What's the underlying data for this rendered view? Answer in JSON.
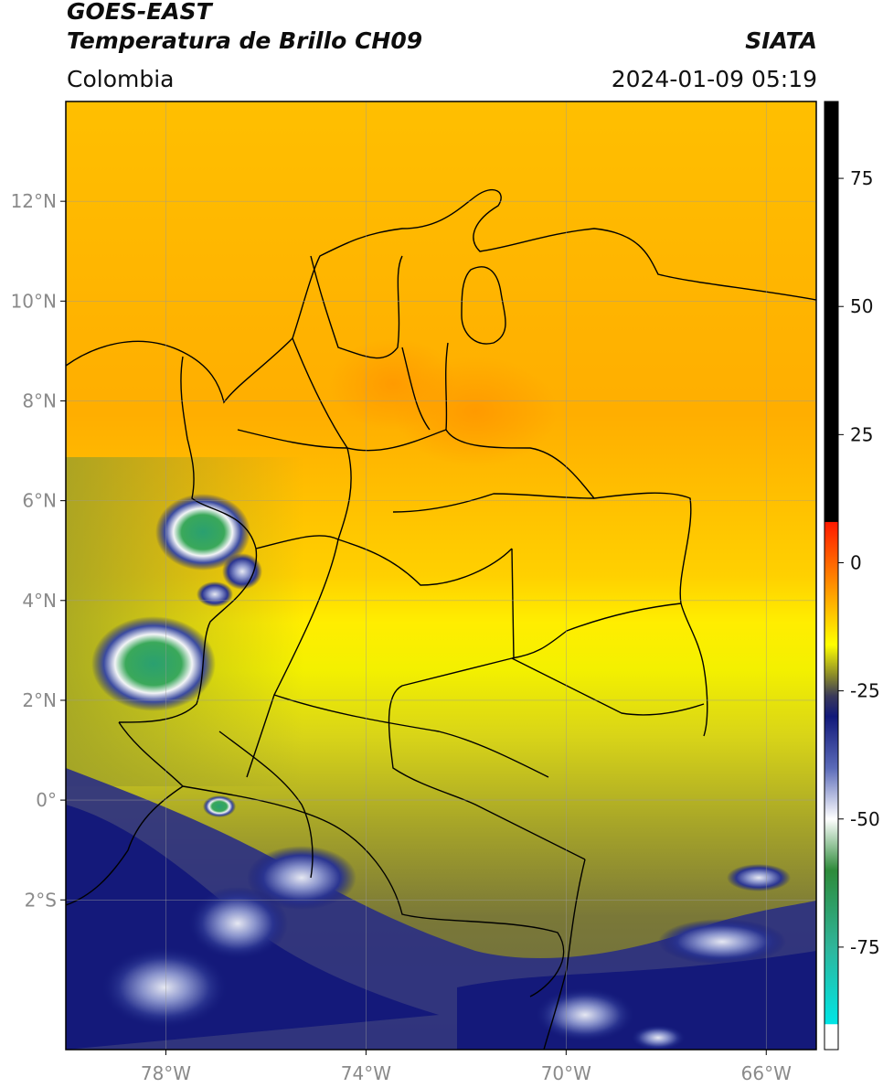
{
  "header": {
    "title_line1": "GOES-EAST",
    "title_line2": "Temperatura de Brillo CH09",
    "region": "Colombia",
    "agency": "SIATA",
    "timestamp": "2024-01-09 05:19"
  },
  "map": {
    "lon_range": [
      -80,
      -65
    ],
    "lat_range": [
      -5,
      14
    ],
    "lat_ticks": [
      {
        "value": 12,
        "label": "12°N"
      },
      {
        "value": 10,
        "label": "10°N"
      },
      {
        "value": 8,
        "label": "8°N"
      },
      {
        "value": 6,
        "label": "6°N"
      },
      {
        "value": 4,
        "label": "4°N"
      },
      {
        "value": 2,
        "label": "2°N"
      },
      {
        "value": 0,
        "label": "0°"
      },
      {
        "value": -2,
        "label": "2°S"
      }
    ],
    "lon_ticks": [
      {
        "value": -78,
        "label": "78°W"
      },
      {
        "value": -74,
        "label": "74°W"
      },
      {
        "value": -70,
        "label": "70°W"
      },
      {
        "value": -66,
        "label": "66°W"
      }
    ],
    "colors": {
      "warm": "#ffb300",
      "mid": "#f2e600",
      "olive": "#8a8a2a",
      "cold_navy": "#12197a",
      "cold_white": "#eef2f5",
      "cold_green": "#2e8b4a",
      "cold_cyan": "#22c4a8"
    }
  },
  "colorbar": {
    "range": [
      -95,
      90
    ],
    "ticks": [
      {
        "value": 75,
        "label": "75"
      },
      {
        "value": 50,
        "label": "50"
      },
      {
        "value": 25,
        "label": "25"
      },
      {
        "value": 0,
        "label": "0"
      },
      {
        "value": -25,
        "label": "-25"
      },
      {
        "value": -50,
        "label": "-50"
      },
      {
        "value": -75,
        "label": "-75"
      }
    ],
    "stops": [
      {
        "value": 90,
        "color": "#000000"
      },
      {
        "value": 8,
        "color": "#000000"
      },
      {
        "value": 7.9,
        "color": "#ff1a00"
      },
      {
        "value": 0,
        "color": "#ff6600"
      },
      {
        "value": -8,
        "color": "#ffb300"
      },
      {
        "value": -16,
        "color": "#ffff00"
      },
      {
        "value": -22,
        "color": "#8a8a2a"
      },
      {
        "value": -26,
        "color": "#3a3a5a"
      },
      {
        "value": -30,
        "color": "#12197a"
      },
      {
        "value": -40,
        "color": "#5a6ab8"
      },
      {
        "value": -50,
        "color": "#ffffff"
      },
      {
        "value": -60,
        "color": "#2e8b3a"
      },
      {
        "value": -75,
        "color": "#2fb59a"
      },
      {
        "value": -90,
        "color": "#00e5e5"
      },
      {
        "value": -90.1,
        "color": "#ffffff"
      },
      {
        "value": -95,
        "color": "#ffffff"
      }
    ]
  }
}
